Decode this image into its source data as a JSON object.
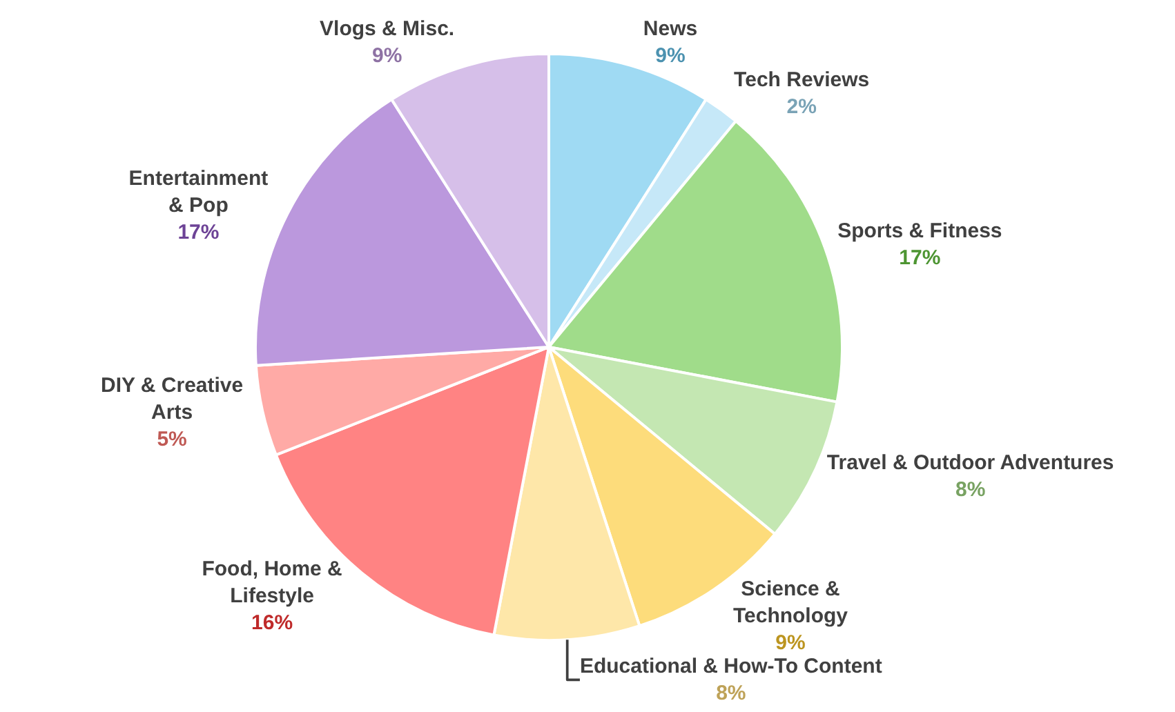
{
  "chart_data": {
    "type": "pie",
    "categories": [
      "News",
      "Tech Reviews",
      "Sports & Fitness",
      "Travel & Outdoor Adventures",
      "Science & Technology",
      "Educational & How-To Content",
      "Food, Home & Lifestyle",
      "DIY & Creative Arts",
      "Entertainment & Pop",
      "Vlogs & Misc."
    ],
    "values": [
      9,
      2,
      17,
      8,
      9,
      8,
      16,
      5,
      17,
      9
    ],
    "value_labels": [
      "9%",
      "2%",
      "17%",
      "8%",
      "9%",
      "8%",
      "16%",
      "5%",
      "17%",
      "9%"
    ],
    "colors": [
      "#9fdaf3",
      "#c6e8f8",
      "#a0dc8a",
      "#c4e7b2",
      "#fddc7b",
      "#fee7a9",
      "#ff8383",
      "#ffaaa6",
      "#bb98dd",
      "#d6bfe9"
    ]
  }
}
